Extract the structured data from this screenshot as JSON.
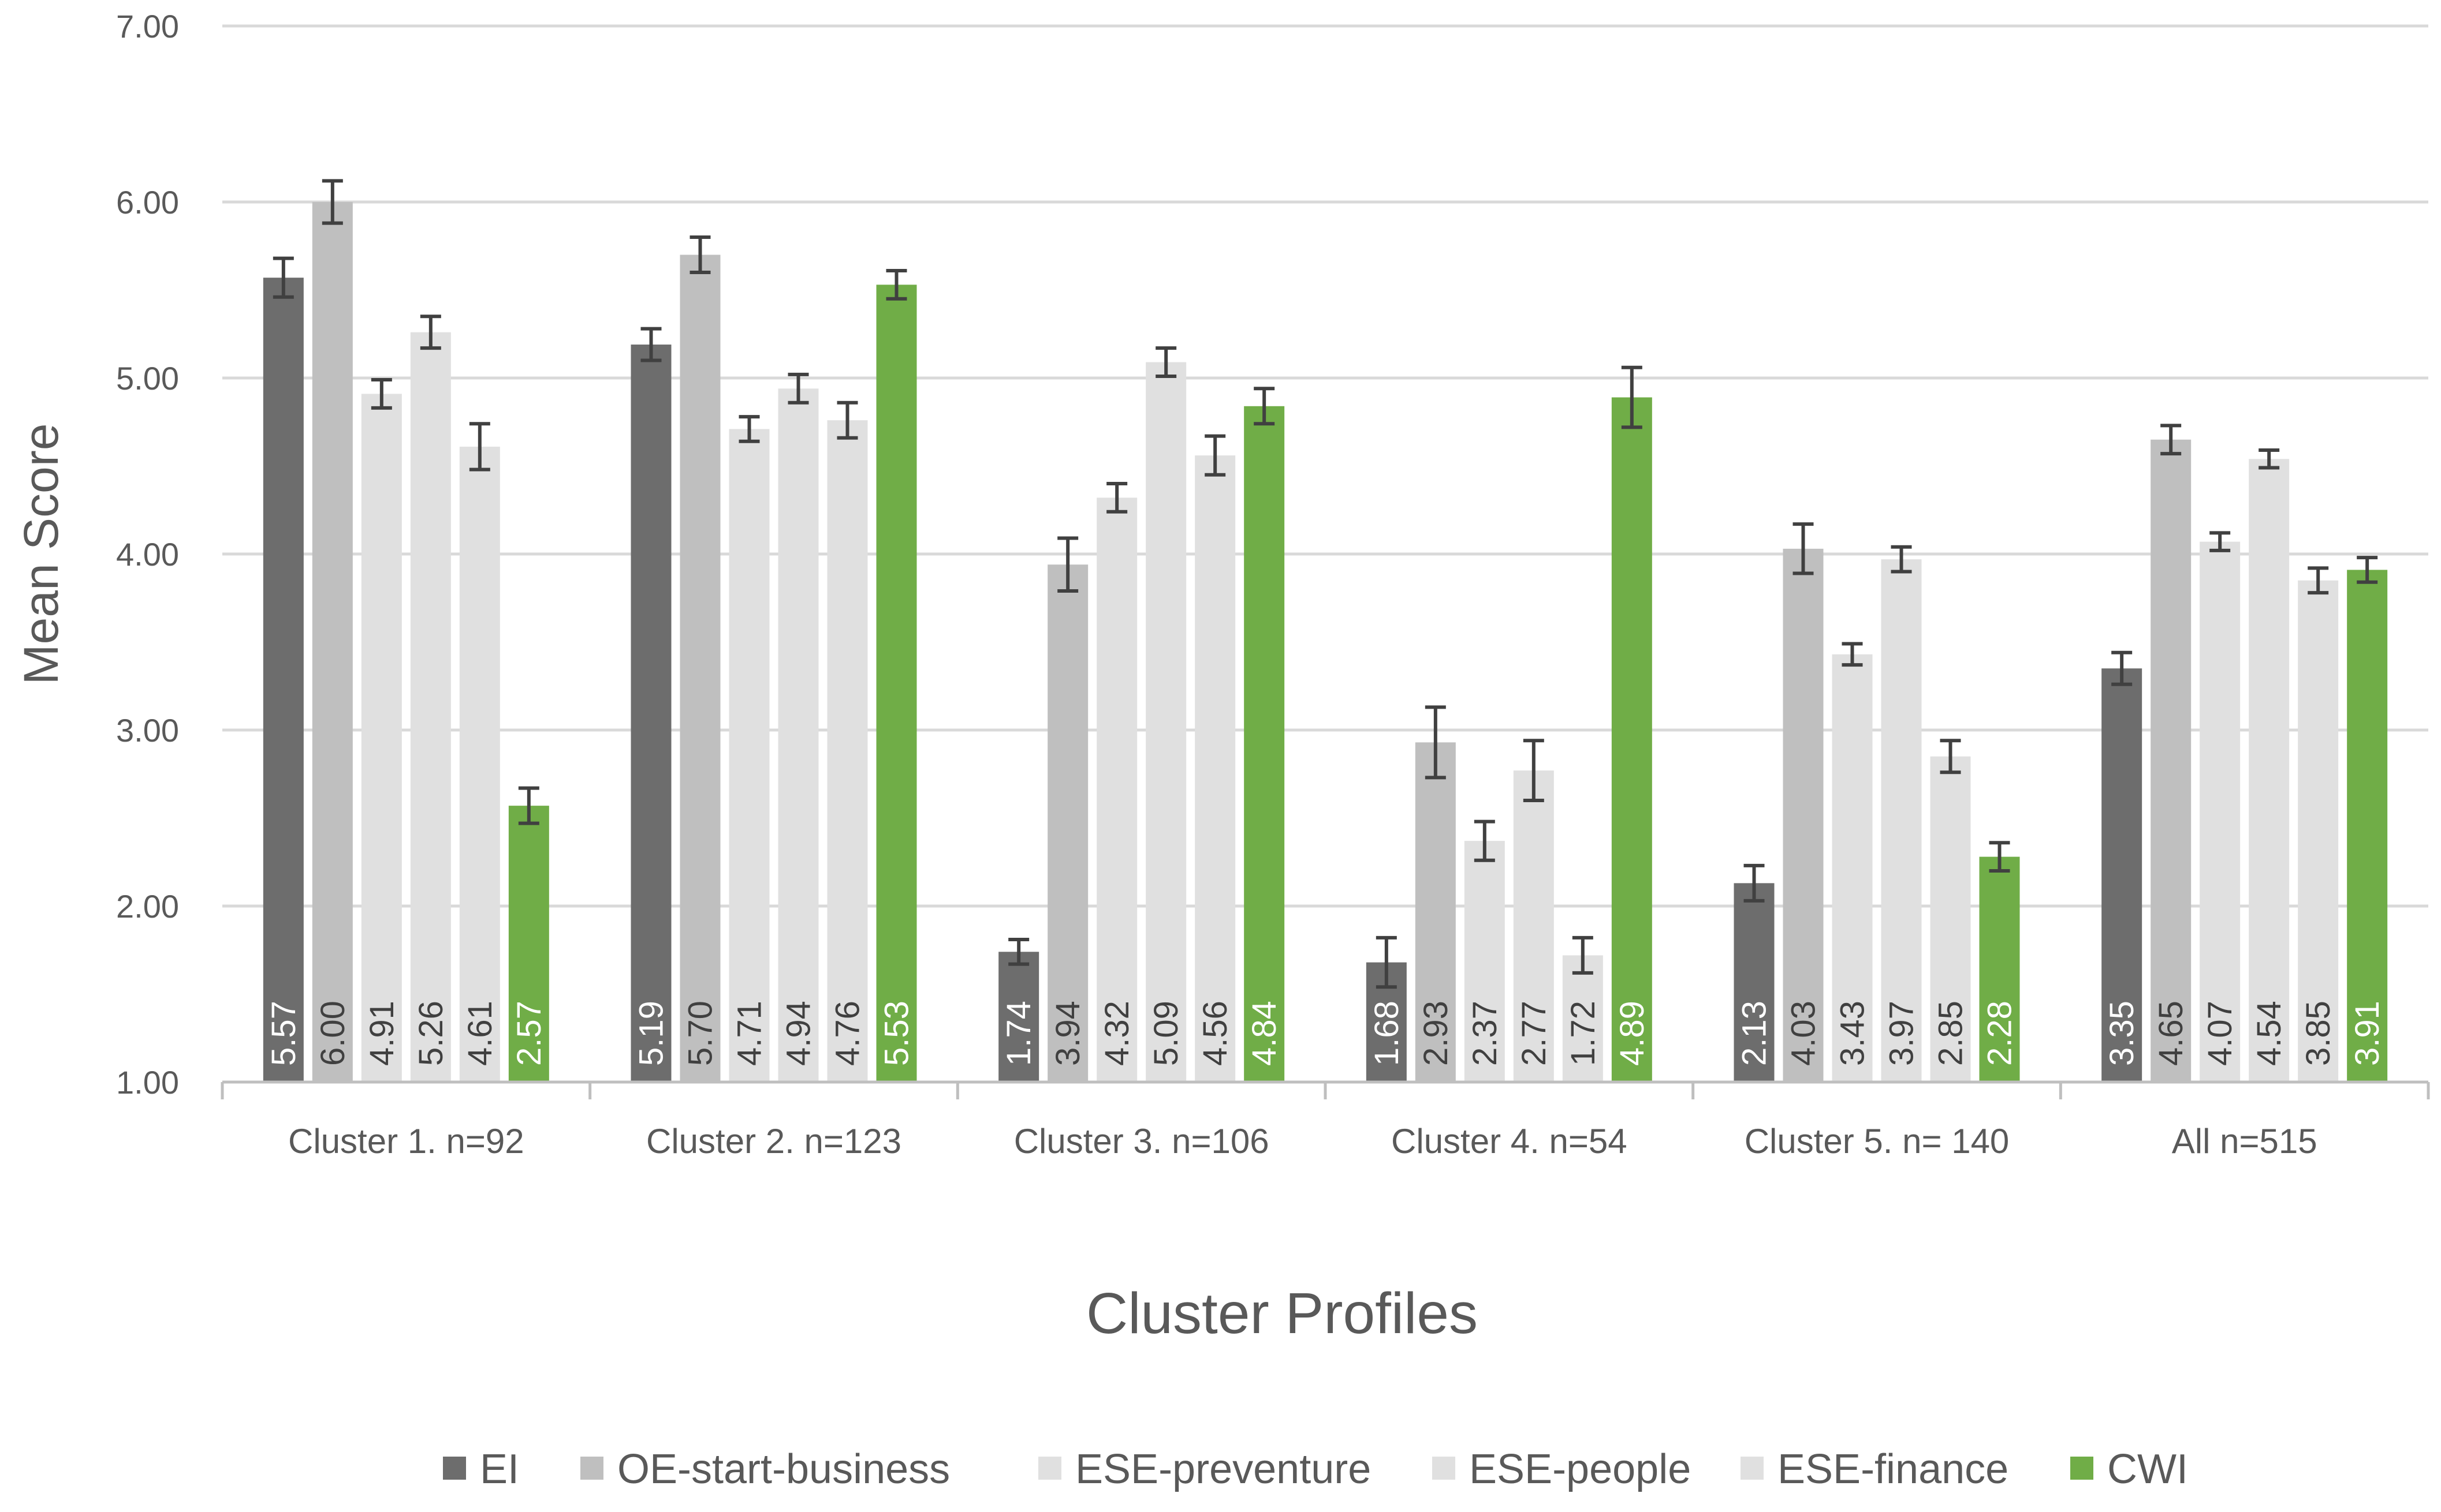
{
  "chart_data": {
    "type": "bar",
    "title": "",
    "xlabel": "Cluster Profiles",
    "ylabel": "Mean Score",
    "ylim": [
      1.0,
      7.0
    ],
    "ytick_values": [
      1.0,
      2.0,
      3.0,
      4.0,
      5.0,
      6.0,
      7.0
    ],
    "ytick_labels": [
      "1.00",
      "2.00",
      "3.00",
      "4.00",
      "5.00",
      "6.00",
      "7.00"
    ],
    "grid": true,
    "legend_position": "bottom",
    "categories": [
      "Cluster 1. n=92",
      "Cluster 2.  n=123",
      "Cluster 3.  n=106",
      "Cluster 4. n=54",
      "Cluster 5. n= 140",
      "All n=515"
    ],
    "series": [
      {
        "name": "EI",
        "color": "#6d6d6d",
        "values": [
          5.57,
          5.19,
          1.74,
          1.68,
          2.13,
          3.35
        ],
        "labels": [
          "5.57",
          "5.19",
          "1.74",
          "1.68",
          "2.13",
          "3.35"
        ],
        "errors": [
          0.11,
          0.09,
          0.07,
          0.14,
          0.1,
          0.09
        ]
      },
      {
        "name": "OE-start-business",
        "color": "#bfbfbf",
        "values": [
          6.0,
          5.7,
          3.94,
          2.93,
          4.03,
          4.65
        ],
        "labels": [
          "6.00",
          "5.70",
          "3.94",
          "2.93",
          "4.03",
          "4.65"
        ],
        "errors": [
          0.12,
          0.1,
          0.15,
          0.2,
          0.14,
          0.08
        ]
      },
      {
        "name": "ESE-preventure",
        "color": "#e0e0e0",
        "values": [
          4.91,
          4.71,
          4.32,
          2.37,
          3.43,
          4.07
        ],
        "labels": [
          "4.91",
          "4.71",
          "4.32",
          "2.37",
          "3.43",
          "4.07"
        ],
        "errors": [
          0.08,
          0.07,
          0.08,
          0.11,
          0.06,
          0.05
        ]
      },
      {
        "name": "ESE-people",
        "color": "#e0e0e0",
        "values": [
          5.26,
          4.94,
          5.09,
          2.77,
          3.97,
          4.54
        ],
        "labels": [
          "5.26",
          "4.94",
          "5.09",
          "2.77",
          "3.97",
          "4.54"
        ],
        "errors": [
          0.09,
          0.08,
          0.08,
          0.17,
          0.07,
          0.05
        ]
      },
      {
        "name": "ESE-finance",
        "color": "#e0e0e0",
        "values": [
          4.61,
          4.76,
          4.56,
          1.72,
          2.85,
          3.85
        ],
        "labels": [
          "4.61",
          "4.76",
          "4.56",
          "1.72",
          "2.85",
          "3.85"
        ],
        "errors": [
          0.13,
          0.1,
          0.11,
          0.1,
          0.09,
          0.07
        ]
      },
      {
        "name": "CWI",
        "color": "#70ad47",
        "values": [
          2.57,
          5.53,
          4.84,
          4.89,
          2.28,
          3.91
        ],
        "labels": [
          "2.57",
          "5.53",
          "4.84",
          "4.89",
          "2.28",
          "3.91"
        ],
        "errors": [
          0.1,
          0.08,
          0.1,
          0.17,
          0.08,
          0.07
        ]
      }
    ]
  }
}
